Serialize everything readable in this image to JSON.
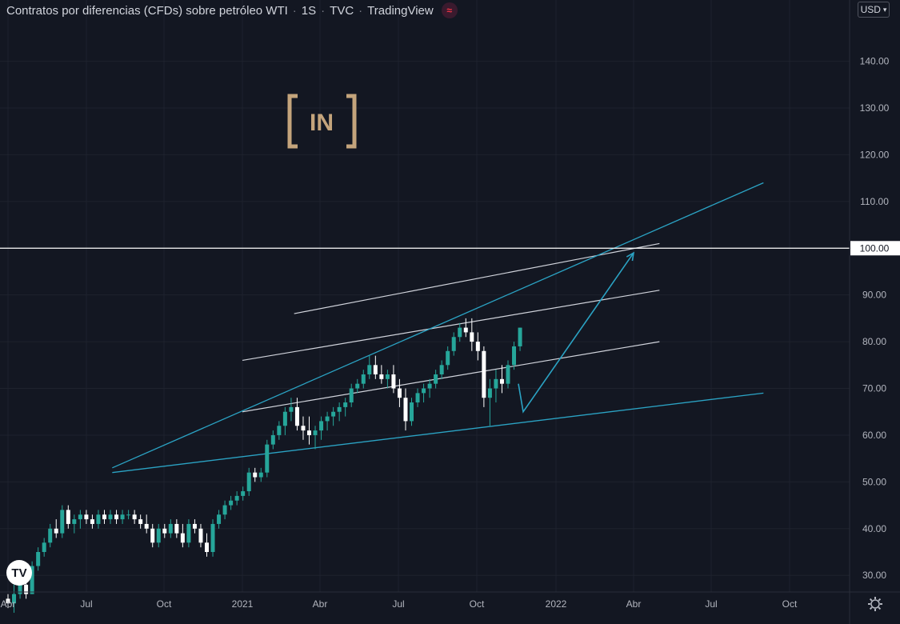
{
  "header": {
    "symbol_name": "Contratos por diferencias (CFDs) sobre petróleo WTI",
    "interval": "1S",
    "exchange": "TVC",
    "platform": "TradingView",
    "flag_icon": "≈",
    "currency": "USD",
    "currency_chevron": "chevron-down-icon"
  },
  "watermark": {
    "text": "IN",
    "brand_color": "#c4a47c"
  },
  "colors": {
    "background": "#131722",
    "up": "#26a69a",
    "down": "#ffffff",
    "trend_cyan": "#2ba3c4",
    "channel_white": "#d1d4dc",
    "level_line": "#ffffff"
  },
  "chart_data": {
    "type": "candlestick",
    "title": "Contratos por diferencias (CFDs) sobre petróleo WTI · 1S · TVC · TradingView",
    "x_ticks": [
      "Abr",
      "Jul",
      "Oct",
      "2021",
      "Abr",
      "Jul",
      "Oct",
      "2022",
      "Abr",
      "Jul",
      "Oct"
    ],
    "y_ticks": [
      "30.00",
      "40.00",
      "50.00",
      "60.00",
      "70.00",
      "80.00",
      "90.00",
      "100.00",
      "110.00",
      "120.00",
      "130.00",
      "140.00"
    ],
    "ylim": [
      26,
      153
    ],
    "highlighted_level": "100.00",
    "series": [
      {
        "name": "WTI",
        "candles": [
          [
            25,
            26,
            23,
            24
          ],
          [
            24,
            28,
            22,
            26
          ],
          [
            26,
            30,
            25,
            28
          ],
          [
            28,
            29,
            25,
            26
          ],
          [
            26,
            33,
            26,
            32
          ],
          [
            32,
            36,
            31,
            35
          ],
          [
            35,
            38,
            34,
            37
          ],
          [
            37,
            41,
            36,
            40
          ],
          [
            40,
            42,
            38,
            39
          ],
          [
            39,
            45,
            38,
            44
          ],
          [
            44,
            45,
            40,
            41
          ],
          [
            41,
            43,
            39,
            42
          ],
          [
            42,
            44,
            40,
            43
          ],
          [
            43,
            44,
            41,
            42
          ],
          [
            42,
            43,
            40,
            41
          ],
          [
            41,
            44,
            40,
            43
          ],
          [
            43,
            44,
            41,
            42
          ],
          [
            42,
            44,
            41,
            43
          ],
          [
            43,
            44,
            41,
            42
          ],
          [
            42,
            44,
            41,
            43
          ],
          [
            43,
            44,
            42,
            43
          ],
          [
            43,
            44,
            41,
            42
          ],
          [
            42,
            43,
            40,
            41
          ],
          [
            41,
            43,
            39,
            40
          ],
          [
            40,
            41,
            36,
            37
          ],
          [
            37,
            41,
            36,
            40
          ],
          [
            40,
            41,
            38,
            39
          ],
          [
            39,
            42,
            38,
            41
          ],
          [
            41,
            42,
            38,
            39
          ],
          [
            39,
            41,
            36,
            37
          ],
          [
            37,
            42,
            36,
            41
          ],
          [
            41,
            42,
            39,
            40
          ],
          [
            40,
            41,
            36,
            37
          ],
          [
            37,
            39,
            34,
            35
          ],
          [
            35,
            42,
            34,
            41
          ],
          [
            41,
            44,
            40,
            43
          ],
          [
            43,
            46,
            42,
            45
          ],
          [
            45,
            47,
            44,
            46
          ],
          [
            46,
            48,
            45,
            47
          ],
          [
            47,
            49,
            46,
            48
          ],
          [
            48,
            53,
            47,
            52
          ],
          [
            52,
            53,
            50,
            51
          ],
          [
            51,
            53,
            50,
            52
          ],
          [
            52,
            59,
            51,
            58
          ],
          [
            58,
            61,
            57,
            60
          ],
          [
            60,
            63,
            59,
            62
          ],
          [
            62,
            66,
            60,
            65
          ],
          [
            65,
            68,
            63,
            66
          ],
          [
            66,
            68,
            61,
            62
          ],
          [
            62,
            64,
            59,
            61
          ],
          [
            61,
            64,
            58,
            60
          ],
          [
            60,
            62,
            57,
            61
          ],
          [
            61,
            64,
            59,
            63
          ],
          [
            63,
            65,
            61,
            64
          ],
          [
            64,
            66,
            62,
            65
          ],
          [
            65,
            67,
            63,
            66
          ],
          [
            66,
            68,
            64,
            67
          ],
          [
            67,
            71,
            66,
            70
          ],
          [
            70,
            72,
            69,
            71
          ],
          [
            71,
            74,
            70,
            73
          ],
          [
            73,
            77,
            72,
            75
          ],
          [
            75,
            77,
            72,
            73
          ],
          [
            73,
            75,
            71,
            72
          ],
          [
            72,
            74,
            70,
            73
          ],
          [
            73,
            75,
            69,
            70
          ],
          [
            70,
            72,
            66,
            68
          ],
          [
            68,
            70,
            61,
            63
          ],
          [
            63,
            68,
            62,
            67
          ],
          [
            67,
            70,
            66,
            69
          ],
          [
            69,
            71,
            67,
            70
          ],
          [
            70,
            72,
            68,
            71
          ],
          [
            71,
            74,
            70,
            73
          ],
          [
            73,
            76,
            72,
            75
          ],
          [
            75,
            79,
            74,
            78
          ],
          [
            78,
            82,
            77,
            81
          ],
          [
            81,
            84,
            80,
            83
          ],
          [
            83,
            85,
            81,
            82
          ],
          [
            82,
            85,
            78,
            80
          ],
          [
            80,
            82,
            76,
            78
          ],
          [
            78,
            79,
            66,
            68
          ],
          [
            68,
            72,
            62,
            70
          ],
          [
            70,
            74,
            67,
            72
          ],
          [
            72,
            75,
            69,
            71
          ],
          [
            71,
            76,
            70,
            75
          ],
          [
            75,
            80,
            74,
            79
          ],
          [
            79,
            83,
            78,
            83
          ]
        ]
      }
    ],
    "channel_lines": [
      {
        "name": "channel-upper",
        "from": [
          "2021-03",
          86
        ],
        "to": [
          "2022-05",
          101
        ]
      },
      {
        "name": "channel-middle",
        "from": [
          "2021-01",
          76
        ],
        "to": [
          "2022-05",
          91
        ]
      },
      {
        "name": "channel-lower",
        "from": [
          "2021-01",
          65
        ],
        "to": [
          "2022-05",
          80
        ]
      }
    ],
    "trend_lines": [
      {
        "name": "support-trendline",
        "from": [
          "2020-08",
          52
        ],
        "to": [
          "2022-09",
          69
        ]
      },
      {
        "name": "resistance-trendline",
        "from": [
          "2020-08",
          53
        ],
        "to": [
          "2022-09",
          114
        ]
      }
    ],
    "projection_path": [
      [
        "2021-12",
        71
      ],
      [
        "2021-12",
        65
      ],
      [
        "2022-04",
        99
      ]
    ]
  }
}
